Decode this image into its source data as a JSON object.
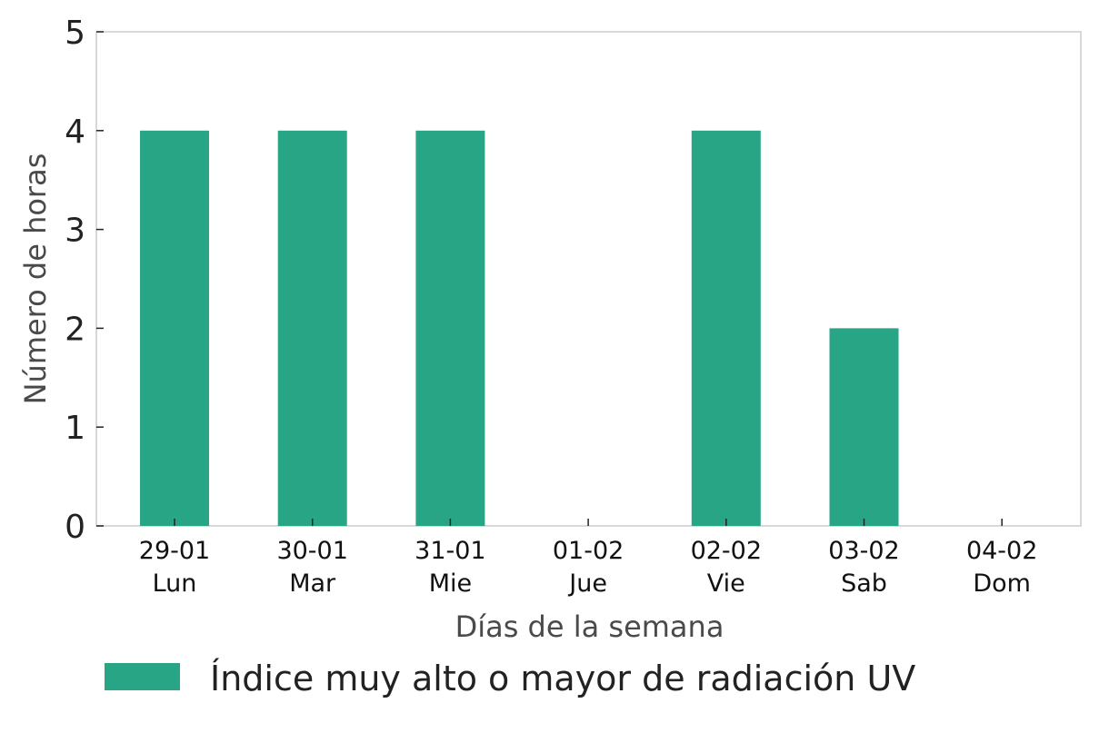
{
  "chart_data": {
    "type": "bar",
    "categories": [
      {
        "date": "29-01",
        "day": "Lun"
      },
      {
        "date": "30-01",
        "day": "Mar"
      },
      {
        "date": "31-01",
        "day": "Mie"
      },
      {
        "date": "01-02",
        "day": "Jue"
      },
      {
        "date": "02-02",
        "day": "Vie"
      },
      {
        "date": "03-02",
        "day": "Sab"
      },
      {
        "date": "04-02",
        "day": "Dom"
      }
    ],
    "series": [
      {
        "name": "Índice muy alto o mayor de radiación UV",
        "values": [
          4,
          4,
          4,
          0,
          4,
          2,
          0
        ],
        "color": "#27a584"
      }
    ],
    "xlabel": "Días de la semana",
    "ylabel": "Número de horas",
    "ylim": [
      0,
      5
    ],
    "yticks": [
      "0",
      "1",
      "2",
      "3",
      "4",
      "5"
    ],
    "grid": false,
    "legend_position": "bottom"
  }
}
